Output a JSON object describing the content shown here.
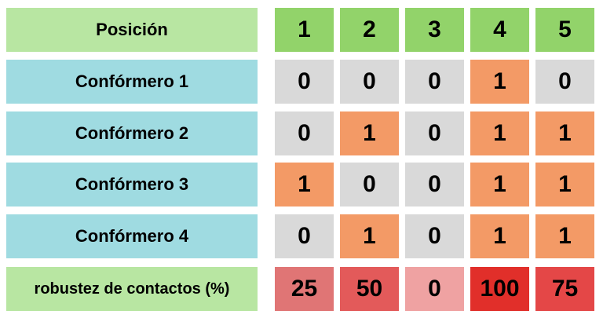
{
  "header": {
    "label": "Posición",
    "positions": [
      "1",
      "2",
      "3",
      "4",
      "5"
    ]
  },
  "rows": [
    {
      "label": "Confórmero 1",
      "values": [
        "0",
        "0",
        "0",
        "1",
        "0"
      ]
    },
    {
      "label": "Confórmero 2",
      "values": [
        "0",
        "1",
        "0",
        "1",
        "1"
      ]
    },
    {
      "label": "Confórmero 3",
      "values": [
        "1",
        "0",
        "0",
        "1",
        "1"
      ]
    },
    {
      "label": "Confórmero 4",
      "values": [
        "0",
        "1",
        "0",
        "1",
        "1"
      ]
    }
  ],
  "robustness": {
    "label": "robustez de contactos (%)",
    "values": [
      "25",
      "50",
      "0",
      "100",
      "75"
    ],
    "colors": [
      "#e07575",
      "#e35a5a",
      "#efa2a2",
      "#e12f2a",
      "#e44747"
    ]
  },
  "colors": {
    "header_label_bg": "#b8e6a2",
    "header_position_bg": "#92d36a",
    "row_label_bg": "#9fdbe1",
    "contact_present": "#f39a66",
    "contact_absent": "#d9d9d9",
    "robustness_label_bg": "#b8e6a2"
  }
}
